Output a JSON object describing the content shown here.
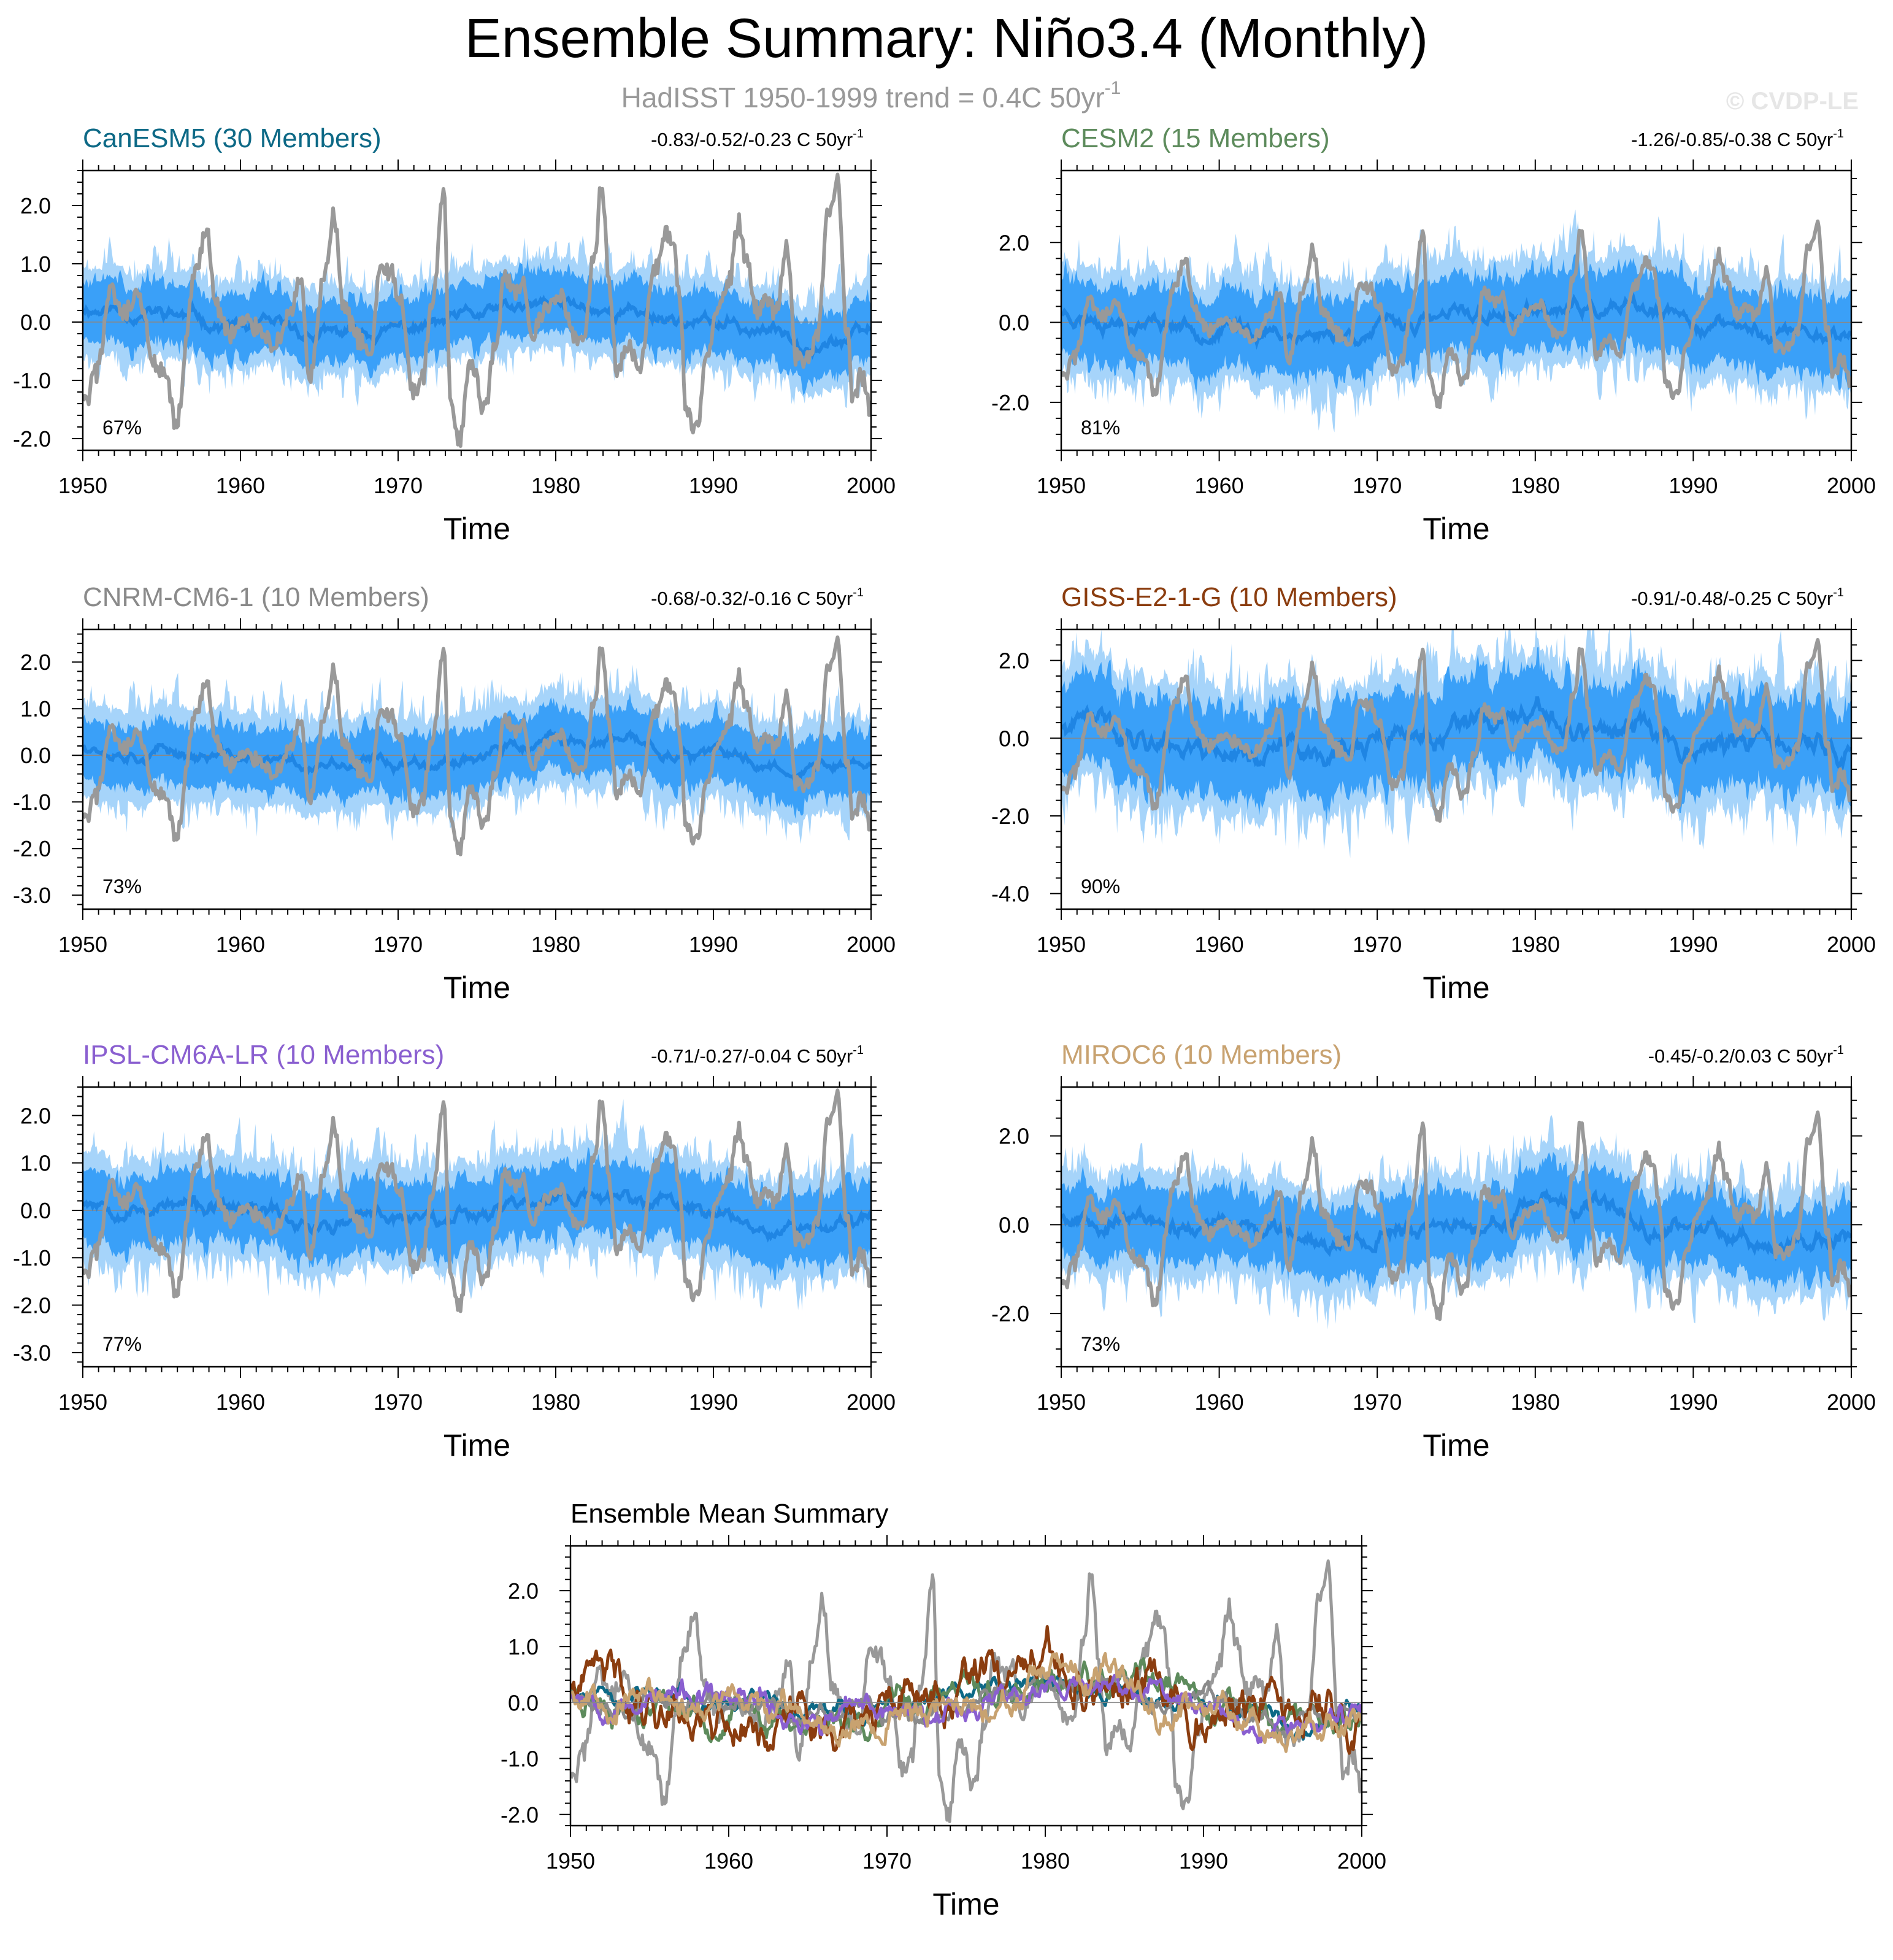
{
  "figure": {
    "title": "Ensemble Summary: Niño3.4 (Monthly)",
    "subtitle": "HadISST 1950-1999 trend = 0.4C 50yr",
    "subtitle_sup": "-1",
    "watermark": "© CVDP-LE",
    "colors": {
      "observed": "#999999",
      "band_outer": "#a6d4fa",
      "band_inner": "#3aa0f8",
      "ensemble_mean": "#1f85e3",
      "zero_line": "#888888",
      "text": "#000000"
    }
  },
  "chart_data": [
    {
      "id": "canesm5",
      "type": "line",
      "title": "CanESM5 (30 Members)",
      "title_color": "#0d6986",
      "trend_label": "-0.83/-0.52/-0.23 C 50yr",
      "trend_sup": "-1",
      "percent_label": "67%",
      "xlabel": "Time",
      "ylabel": "",
      "xlim": [
        1950,
        2000
      ],
      "ylim": [
        -2.2,
        2.6
      ],
      "xticks": [
        1950,
        1960,
        1970,
        1980,
        1990,
        2000
      ],
      "yticks": [
        -2,
        -1,
        0,
        1,
        2
      ],
      "ytick_labels": [
        "-2.0",
        "-1.0",
        "0.0",
        "1.0",
        "2.0"
      ],
      "mean_amp": 0.18,
      "band_inner": 0.6,
      "band_outer": 0.95,
      "seed": 11
    },
    {
      "id": "cesm2",
      "type": "line",
      "title": "CESM2 (15 Members)",
      "title_color": "#5d8b5c",
      "trend_label": "-1.26/-0.85/-0.38 C 50yr",
      "trend_sup": "-1",
      "percent_label": "81%",
      "xlabel": "Time",
      "ylabel": "",
      "xlim": [
        1950,
        2000
      ],
      "ylim": [
        -3.2,
        3.8
      ],
      "xticks": [
        1950,
        1960,
        1970,
        1980,
        1990,
        2000
      ],
      "yticks": [
        -2,
        0,
        2
      ],
      "ytick_labels": [
        "-2.0",
        "0.0",
        "2.0"
      ],
      "mean_amp": 0.3,
      "band_inner": 1.1,
      "band_outer": 1.7,
      "seed": 23
    },
    {
      "id": "cnrm",
      "type": "line",
      "title": "CNRM-CM6-1 (10 Members)",
      "title_color": "#8a8a8a",
      "trend_label": "-0.68/-0.32/-0.16 C 50yr",
      "trend_sup": "-1",
      "percent_label": "73%",
      "xlabel": "Time",
      "ylabel": "",
      "xlim": [
        1950,
        2000
      ],
      "ylim": [
        -3.3,
        2.7
      ],
      "xticks": [
        1950,
        1960,
        1970,
        1980,
        1990,
        2000
      ],
      "yticks": [
        -3,
        -2,
        -1,
        0,
        1,
        2
      ],
      "ytick_labels": [
        "-3.0",
        "-2.0",
        "-1.0",
        "0.0",
        "1.0",
        "2.0"
      ],
      "mean_amp": 0.2,
      "band_inner": 0.75,
      "band_outer": 1.25,
      "seed": 37
    },
    {
      "id": "giss",
      "type": "line",
      "title": "GISS-E2-1-G (10 Members)",
      "title_color": "#8b3d0f",
      "trend_label": "-0.91/-0.48/-0.25 C 50yr",
      "trend_sup": "-1",
      "percent_label": "90%",
      "xlabel": "Time",
      "ylabel": "",
      "xlim": [
        1950,
        2000
      ],
      "ylim": [
        -4.4,
        2.8
      ],
      "xticks": [
        1950,
        1960,
        1970,
        1980,
        1990,
        2000
      ],
      "yticks": [
        -4,
        -2,
        0,
        2
      ],
      "ytick_labels": [
        "-4.0",
        "-2.0",
        "0.0",
        "2.0"
      ],
      "mean_amp": 0.45,
      "band_inner": 1.3,
      "band_outer": 2.0,
      "seed": 41
    },
    {
      "id": "ipsl",
      "type": "line",
      "title": "IPSL-CM6A-LR (10 Members)",
      "title_color": "#8a5fd0",
      "trend_label": "-0.71/-0.27/-0.04 C 50yr",
      "trend_sup": "-1",
      "percent_label": "77%",
      "xlabel": "Time",
      "ylabel": "",
      "xlim": [
        1950,
        2000
      ],
      "ylim": [
        -3.3,
        2.6
      ],
      "xticks": [
        1950,
        1960,
        1970,
        1980,
        1990,
        2000
      ],
      "yticks": [
        -3,
        -2,
        -1,
        0,
        1,
        2
      ],
      "ytick_labels": [
        "-3.0",
        "-2.0",
        "-1.0",
        "0.0",
        "1.0",
        "2.0"
      ],
      "mean_amp": 0.25,
      "band_inner": 0.85,
      "band_outer": 1.35,
      "seed": 53
    },
    {
      "id": "miroc6",
      "type": "line",
      "title": "MIROC6 (10 Members)",
      "title_color": "#c8a270",
      "trend_label": "-0.45/-0.2/0.03 C 50yr",
      "trend_sup": "-1",
      "percent_label": "73%",
      "xlabel": "Time",
      "ylabel": "",
      "xlim": [
        1950,
        2000
      ],
      "ylim": [
        -3.2,
        3.1
      ],
      "xticks": [
        1950,
        1960,
        1970,
        1980,
        1990,
        2000
      ],
      "yticks": [
        -2,
        0,
        2
      ],
      "ytick_labels": [
        "-2.0",
        "0.0",
        "2.0"
      ],
      "mean_amp": 0.3,
      "band_inner": 0.9,
      "band_outer": 1.45,
      "seed": 67
    },
    {
      "id": "ensemble_mean",
      "type": "line",
      "title": "Ensemble Mean Summary",
      "title_color": "#000000",
      "xlabel": "Time",
      "ylabel": "",
      "xlim": [
        1950,
        2000
      ],
      "ylim": [
        -2.2,
        2.8
      ],
      "xticks": [
        1950,
        1960,
        1970,
        1980,
        1990,
        2000
      ],
      "yticks": [
        -2,
        -1,
        0,
        1,
        2
      ],
      "ytick_labels": [
        "-2.0",
        "-1.0",
        "0.0",
        "1.0",
        "2.0"
      ],
      "series": [
        {
          "name": "HadISST",
          "color": "#999999",
          "amp": 0
        },
        {
          "name": "CanESM5",
          "color": "#0d6986",
          "amp": 0.18,
          "seed": 11
        },
        {
          "name": "CESM2",
          "color": "#5d8b5c",
          "amp": 0.3,
          "seed": 23
        },
        {
          "name": "CNRM-CM6-1",
          "color": "#8a8a8a",
          "amp": 0.2,
          "seed": 37
        },
        {
          "name": "GISS-E2-1-G",
          "color": "#8b3d0f",
          "amp": 0.45,
          "seed": 41
        },
        {
          "name": "IPSL-CM6A-LR",
          "color": "#8a5fd0",
          "amp": 0.25,
          "seed": 53
        },
        {
          "name": "MIROC6",
          "color": "#c8a270",
          "amp": 0.3,
          "seed": 67
        }
      ]
    }
  ],
  "observed_key_values": {
    "series": "HadISST Niño3.4",
    "years": [
      1950.2,
      1950.8,
      1951.8,
      1952.5,
      1953.5,
      1954.7,
      1955.3,
      1955.9,
      1957.1,
      1957.9,
      1958.4,
      1959.3,
      1960.3,
      1961.2,
      1962.2,
      1963.2,
      1963.8,
      1964.4,
      1965.4,
      1965.9,
      1966.6,
      1967.5,
      1968.3,
      1968.8,
      1969.4,
      1970.2,
      1970.9,
      1971.5,
      1972.2,
      1972.9,
      1973.3,
      1973.9,
      1974.6,
      1975.5,
      1976.2,
      1976.8,
      1977.4,
      1977.9,
      1978.5,
      1979.0,
      1979.5,
      1980.3,
      1981.2,
      1981.8,
      1982.5,
      1982.9,
      1983.4,
      1983.9,
      1984.6,
      1985.3,
      1986.2,
      1986.9,
      1987.4,
      1987.8,
      1988.3,
      1988.9,
      1989.6,
      1990.2,
      1991.0,
      1991.6,
      1992.1,
      1992.8,
      1993.4,
      1994.0,
      1994.7,
      1995.2,
      1995.9,
      1996.6,
      1997.3,
      1997.9,
      1998.4,
      1998.9,
      1999.4,
      1999.95
    ],
    "values": [
      -1.4,
      -0.9,
      0.5,
      0.1,
      0.4,
      -0.8,
      -1.0,
      -1.8,
      0.8,
      1.6,
      0.3,
      -0.2,
      0.0,
      -0.1,
      -0.4,
      0.2,
      0.7,
      -1.0,
      0.9,
      1.8,
      0.2,
      -0.3,
      -0.6,
      0.9,
      0.9,
      0.4,
      -1.2,
      -1.0,
      0.4,
      2.2,
      -1.2,
      -2.0,
      -0.7,
      -1.5,
      -0.3,
      0.8,
      0.5,
      0.7,
      -0.4,
      0.1,
      0.3,
      0.5,
      -0.3,
      -0.2,
      1.3,
      2.4,
      0.6,
      -0.9,
      -0.4,
      -0.9,
      0.8,
      1.5,
      1.5,
      0.5,
      -1.5,
      -1.9,
      -0.6,
      0.3,
      0.7,
      1.7,
      1.0,
      0.2,
      0.3,
      0.2,
      1.3,
      -0.6,
      -0.6,
      -0.2,
      1.9,
      2.5,
      0.0,
      -1.4,
      -0.9,
      -1.5
    ]
  },
  "axis_label_fmt": "%"
}
